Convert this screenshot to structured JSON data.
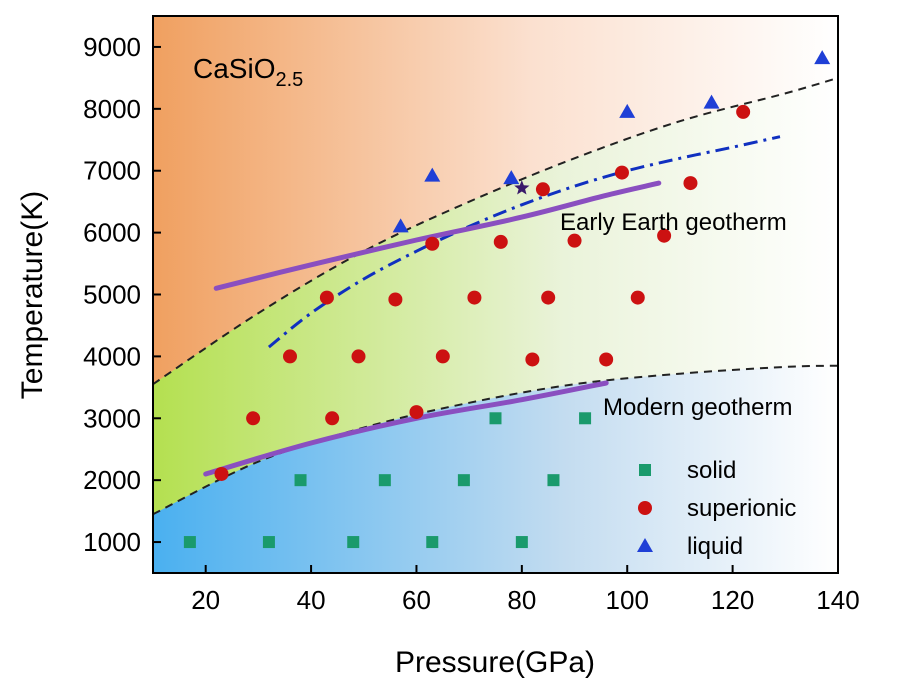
{
  "chart_data": {
    "type": "scatter",
    "title": "",
    "xlabel": "Pressure(GPa)",
    "ylabel": "Temperature(K)",
    "xlim": [
      10,
      140
    ],
    "ylim": [
      500,
      9500
    ],
    "x_ticks": [
      20,
      40,
      60,
      80,
      100,
      120,
      140
    ],
    "y_ticks": [
      1000,
      2000,
      3000,
      4000,
      5000,
      6000,
      7000,
      8000,
      9000
    ],
    "grid": false,
    "legend_position": "bottom-right",
    "compound": {
      "base": "CaSiO",
      "sub": "2.5"
    },
    "colors": {
      "solid": "#1a9a6c",
      "superionic": "#cc1111",
      "liquid": "#1f3fd6",
      "geotherm": "#8a4fc0",
      "melting_curve": "#1030c0",
      "boundary": "#222222",
      "region_liquid": "#f0a060",
      "region_superionic": "#b4e050",
      "region_solid": "#4ab0f0"
    },
    "series": [
      {
        "name": "solid",
        "marker": "square",
        "points": [
          [
            17,
            1000
          ],
          [
            32,
            1000
          ],
          [
            48,
            1000
          ],
          [
            63,
            1000
          ],
          [
            80,
            1000
          ],
          [
            38,
            2000
          ],
          [
            54,
            2000
          ],
          [
            69,
            2000
          ],
          [
            86,
            2000
          ],
          [
            75,
            3000
          ],
          [
            92,
            3000
          ]
        ]
      },
      {
        "name": "superionic",
        "marker": "circle",
        "points": [
          [
            23,
            2100
          ],
          [
            29,
            3000
          ],
          [
            44,
            3000
          ],
          [
            60,
            3100
          ],
          [
            36,
            4000
          ],
          [
            49,
            4000
          ],
          [
            65,
            4000
          ],
          [
            82,
            3950
          ],
          [
            96,
            3950
          ],
          [
            43,
            4950
          ],
          [
            56,
            4920
          ],
          [
            71,
            4950
          ],
          [
            85,
            4950
          ],
          [
            102,
            4950
          ],
          [
            63,
            5820
          ],
          [
            76,
            5850
          ],
          [
            90,
            5870
          ],
          [
            107,
            5950
          ],
          [
            84,
            6700
          ],
          [
            99,
            6970
          ],
          [
            112,
            6800
          ],
          [
            122,
            7950
          ]
        ]
      },
      {
        "name": "liquid",
        "marker": "triangle",
        "points": [
          [
            57,
            6100
          ],
          [
            63,
            6920
          ],
          [
            78,
            6880
          ],
          [
            100,
            7950
          ],
          [
            116,
            8100
          ],
          [
            137,
            8820
          ]
        ]
      }
    ],
    "star_point": [
      80,
      6720
    ],
    "boundary_upper": [
      [
        10,
        3550
      ],
      [
        30,
        4700
      ],
      [
        50,
        5700
      ],
      [
        70,
        6500
      ],
      [
        90,
        7200
      ],
      [
        110,
        7800
      ],
      [
        130,
        8250
      ],
      [
        140,
        8500
      ]
    ],
    "boundary_lower": [
      [
        10,
        1450
      ],
      [
        30,
        2300
      ],
      [
        50,
        2850
      ],
      [
        70,
        3250
      ],
      [
        90,
        3550
      ],
      [
        110,
        3720
      ],
      [
        130,
        3830
      ],
      [
        140,
        3850
      ]
    ],
    "melting_curve": [
      [
        32,
        4150
      ],
      [
        40,
        4700
      ],
      [
        50,
        5250
      ],
      [
        60,
        5700
      ],
      [
        70,
        6100
      ],
      [
        80,
        6450
      ],
      [
        90,
        6750
      ],
      [
        100,
        7000
      ],
      [
        110,
        7200
      ],
      [
        120,
        7380
      ],
      [
        129,
        7550
      ]
    ],
    "early_earth_geotherm": [
      [
        22,
        5100
      ],
      [
        40,
        5480
      ],
      [
        60,
        5880
      ],
      [
        80,
        6250
      ],
      [
        95,
        6580
      ],
      [
        106,
        6800
      ]
    ],
    "modern_geotherm": [
      [
        20,
        2100
      ],
      [
        40,
        2600
      ],
      [
        60,
        3000
      ],
      [
        80,
        3300
      ],
      [
        96,
        3570
      ]
    ],
    "annotations": [
      "Early Earth geotherm",
      "Modern geotherm"
    ]
  }
}
